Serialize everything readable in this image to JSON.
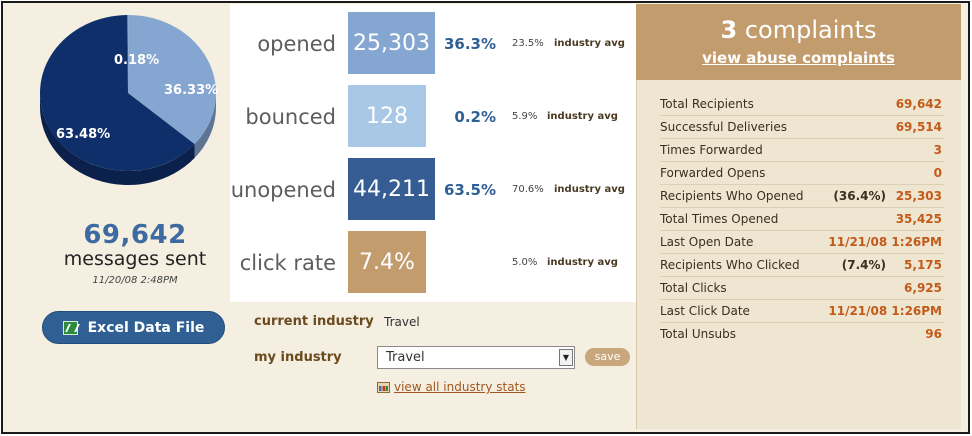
{
  "pie": {
    "segments": [
      {
        "label": "63.48%",
        "value": 63.48,
        "color": "#0f2f6b"
      },
      {
        "label": "36.33%",
        "value": 36.33,
        "color": "#86a6d2"
      },
      {
        "label": "0.18%",
        "value": 0.18,
        "color": "#5a80b8"
      }
    ]
  },
  "summary": {
    "count": "69,642",
    "label": "messages sent",
    "date": "11/20/08 2:48PM"
  },
  "excel_button": {
    "label": "Excel Data File"
  },
  "stats": [
    {
      "name": "opened",
      "value": "25,303",
      "pct": "36.3%",
      "industry": "23.5%",
      "industry_label": "industry avg",
      "color": "#86a6d2"
    },
    {
      "name": "bounced",
      "value": "128",
      "pct": "0.2%",
      "industry": "5.9%",
      "industry_label": "industry avg",
      "color": "#a9c8e6"
    },
    {
      "name": "unopened",
      "value": "44,211",
      "pct": "63.5%",
      "industry": "70.6%",
      "industry_label": "industry avg",
      "color": "#355c93"
    },
    {
      "name": "click rate",
      "value": "7.4%",
      "pct": "",
      "industry": "5.0%",
      "industry_label": "industry avg",
      "color": "#c29c6d"
    }
  ],
  "industry": {
    "current_label": "current industry",
    "current_value": "Travel",
    "my_label": "my industry",
    "my_value": "Travel",
    "save_label": "save",
    "all_stats_link": "view all industry stats"
  },
  "complaints": {
    "count": "3",
    "word": "complaints",
    "link": "view abuse complaints"
  },
  "details": [
    {
      "label": "Total Recipients",
      "pct": "",
      "value": "69,642"
    },
    {
      "label": "Successful Deliveries",
      "pct": "",
      "value": "69,514"
    },
    {
      "label": "Times Forwarded",
      "pct": "",
      "value": "3"
    },
    {
      "label": "Forwarded Opens",
      "pct": "",
      "value": "0"
    },
    {
      "label": "Recipients Who Opened",
      "pct": "(36.4%)",
      "value": "25,303"
    },
    {
      "label": "Total Times Opened",
      "pct": "",
      "value": "35,425"
    },
    {
      "label": "Last Open Date",
      "pct": "",
      "value": "11/21/08 1:26PM"
    },
    {
      "label": "Recipients Who Clicked",
      "pct": "(7.4%)",
      "value": "5,175"
    },
    {
      "label": "Total Clicks",
      "pct": "",
      "value": "6,925"
    },
    {
      "label": "Last Click Date",
      "pct": "",
      "value": "11/21/08 1:26PM"
    },
    {
      "label": "Total Unsubs",
      "pct": "",
      "value": "96"
    }
  ]
}
